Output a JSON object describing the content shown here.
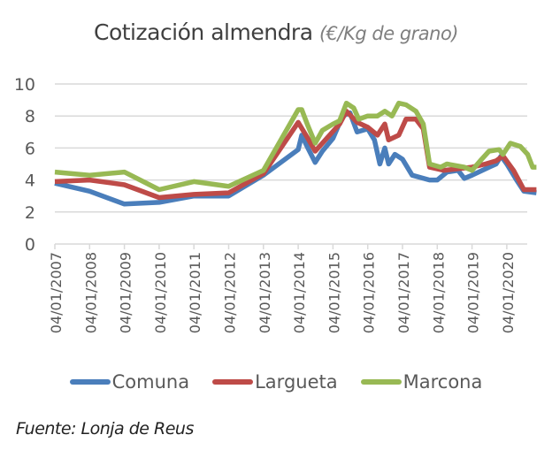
{
  "chart_data": {
    "type": "line",
    "title": "Cotización almendra",
    "subtitle": "(€/Kg de grano)",
    "xlabel": "",
    "ylabel": "",
    "ylim": [
      0,
      10
    ],
    "yticks": [
      0,
      2,
      4,
      6,
      8,
      10
    ],
    "xlim": [
      "2007-01-04",
      "2020-11-10"
    ],
    "x_tick_labels": [
      "04/01/2007",
      "04/01/2008",
      "04/01/2009",
      "04/01/2010",
      "04/01/2011",
      "04/01/2012",
      "04/01/2013",
      "04/01/2014",
      "04/01/2015",
      "04/01/2016",
      "04/01/2017",
      "04/01/2018",
      "04/01/2019",
      "04/01/2020"
    ],
    "grid": "horizontal",
    "legend": "bottom",
    "series": [
      {
        "name": "Comuna",
        "color": "#4a7ebb",
        "points": [
          [
            "2007-01-04",
            3.8
          ],
          [
            "2008-01-04",
            3.3
          ],
          [
            "2009-01-04",
            2.5
          ],
          [
            "2010-01-04",
            2.6
          ],
          [
            "2011-01-04",
            3.0
          ],
          [
            "2012-01-04",
            3.0
          ],
          [
            "2013-01-04",
            4.3
          ],
          [
            "2014-01-04",
            5.9
          ],
          [
            "2014-02-10",
            6.8
          ],
          [
            "2014-04-15",
            6.0
          ],
          [
            "2014-07-01",
            5.1
          ],
          [
            "2014-09-15",
            5.8
          ],
          [
            "2015-01-04",
            6.6
          ],
          [
            "2015-04-15",
            8.0
          ],
          [
            "2015-07-01",
            8.2
          ],
          [
            "2015-09-15",
            7.0
          ],
          [
            "2016-01-04",
            7.2
          ],
          [
            "2016-03-15",
            6.5
          ],
          [
            "2016-05-10",
            5.0
          ],
          [
            "2016-07-01",
            6.0
          ],
          [
            "2016-08-10",
            5.0
          ],
          [
            "2016-10-15",
            5.6
          ],
          [
            "2017-01-04",
            5.3
          ],
          [
            "2017-04-15",
            4.3
          ],
          [
            "2017-10-15",
            4.0
          ],
          [
            "2018-01-04",
            4.0
          ],
          [
            "2018-04-15",
            4.5
          ],
          [
            "2018-08-10",
            4.6
          ],
          [
            "2018-10-15",
            4.1
          ],
          [
            "2019-01-04",
            4.3
          ],
          [
            "2019-07-01",
            4.8
          ],
          [
            "2019-09-15",
            5.0
          ],
          [
            "2019-11-05",
            5.5
          ],
          [
            "2020-01-04",
            5.0
          ],
          [
            "2020-04-15",
            4.0
          ],
          [
            "2020-07-01",
            3.3
          ],
          [
            "2020-11-10",
            3.2
          ]
        ]
      },
      {
        "name": "Largueta",
        "color": "#be4b48",
        "points": [
          [
            "2007-01-04",
            3.9
          ],
          [
            "2008-01-04",
            4.0
          ],
          [
            "2009-01-04",
            3.7
          ],
          [
            "2010-01-04",
            2.9
          ],
          [
            "2011-01-04",
            3.1
          ],
          [
            "2012-01-04",
            3.2
          ],
          [
            "2013-01-04",
            4.4
          ],
          [
            "2014-01-04",
            7.6
          ],
          [
            "2014-04-15",
            6.6
          ],
          [
            "2014-07-01",
            5.8
          ],
          [
            "2014-10-15",
            6.5
          ],
          [
            "2015-03-15",
            7.5
          ],
          [
            "2015-05-25",
            8.3
          ],
          [
            "2015-09-15",
            7.6
          ],
          [
            "2016-01-04",
            7.3
          ],
          [
            "2016-04-15",
            6.8
          ],
          [
            "2016-07-01",
            7.5
          ],
          [
            "2016-08-10",
            6.5
          ],
          [
            "2016-11-25",
            6.8
          ],
          [
            "2017-02-10",
            7.8
          ],
          [
            "2017-05-25",
            7.8
          ],
          [
            "2017-08-10",
            7.2
          ],
          [
            "2017-10-15",
            4.8
          ],
          [
            "2018-03-15",
            4.6
          ],
          [
            "2018-08-10",
            4.7
          ],
          [
            "2019-01-04",
            4.8
          ],
          [
            "2019-05-25",
            5.0
          ],
          [
            "2019-09-15",
            5.2
          ],
          [
            "2019-11-25",
            5.5
          ],
          [
            "2020-03-15",
            4.6
          ],
          [
            "2020-07-01",
            3.4
          ],
          [
            "2020-11-10",
            3.4
          ]
        ]
      },
      {
        "name": "Marcona",
        "color": "#98b954",
        "points": [
          [
            "2007-01-04",
            4.5
          ],
          [
            "2008-01-04",
            4.3
          ],
          [
            "2009-01-04",
            4.5
          ],
          [
            "2010-01-04",
            3.4
          ],
          [
            "2011-01-04",
            3.9
          ],
          [
            "2012-01-04",
            3.6
          ],
          [
            "2013-01-04",
            4.6
          ],
          [
            "2014-01-04",
            8.4
          ],
          [
            "2014-02-10",
            8.4
          ],
          [
            "2014-04-15",
            7.4
          ],
          [
            "2014-07-01",
            6.3
          ],
          [
            "2014-09-15",
            7.1
          ],
          [
            "2015-01-04",
            7.5
          ],
          [
            "2015-03-15",
            7.7
          ],
          [
            "2015-05-25",
            8.8
          ],
          [
            "2015-08-10",
            8.5
          ],
          [
            "2015-10-01",
            7.8
          ],
          [
            "2016-01-04",
            8.0
          ],
          [
            "2016-04-15",
            8.0
          ],
          [
            "2016-07-01",
            8.3
          ],
          [
            "2016-09-15",
            8.0
          ],
          [
            "2016-11-25",
            8.8
          ],
          [
            "2017-02-10",
            8.7
          ],
          [
            "2017-05-25",
            8.3
          ],
          [
            "2017-08-10",
            7.5
          ],
          [
            "2017-10-15",
            5.0
          ],
          [
            "2018-02-10",
            4.8
          ],
          [
            "2018-04-15",
            5.0
          ],
          [
            "2018-10-15",
            4.8
          ],
          [
            "2019-01-04",
            4.6
          ],
          [
            "2019-04-15",
            5.3
          ],
          [
            "2019-07-01",
            5.8
          ],
          [
            "2019-10-15",
            5.9
          ],
          [
            "2019-11-25",
            5.6
          ],
          [
            "2020-02-10",
            6.3
          ],
          [
            "2020-05-25",
            6.1
          ],
          [
            "2020-08-10",
            5.6
          ],
          [
            "2020-10-01",
            4.8
          ],
          [
            "2020-11-10",
            4.8
          ]
        ]
      }
    ]
  },
  "source": "Fuente: Lonja de Reus"
}
